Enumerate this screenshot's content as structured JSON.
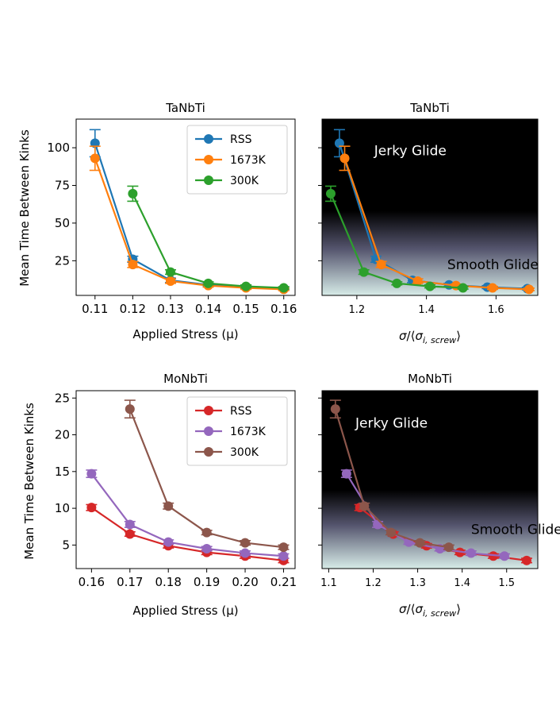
{
  "colors": {
    "blue": "#1f77b4",
    "orange": "#ff7f0e",
    "green": "#2ca02c",
    "red": "#d62728",
    "purple": "#9467bd",
    "brown": "#8c564b"
  },
  "shared_ylabel": "Mean Time Between Kinks",
  "chart_data": [
    {
      "id": "tl",
      "type": "line",
      "title": "TaNbTi",
      "xlabel": "Applied Stress (μ)",
      "xlim": [
        0.105,
        0.163
      ],
      "ylim": [
        2,
        119
      ],
      "xticks": [
        0.11,
        0.12,
        0.13,
        0.14,
        0.15,
        0.16
      ],
      "xtick_labels": [
        "0.11",
        "0.12",
        "0.13",
        "0.14",
        "0.15",
        "0.16"
      ],
      "yticks": [
        25,
        50,
        75,
        100
      ],
      "ytick_labels": [
        "25",
        "50",
        "75",
        "100"
      ],
      "legend": {
        "position": "top-right",
        "entries": [
          "RSS",
          "1673K",
          "300K"
        ]
      },
      "series": [
        {
          "name": "RSS",
          "color": "blue",
          "x": [
            0.11,
            0.12,
            0.13,
            0.14,
            0.15,
            0.16
          ],
          "y": [
            103,
            26,
            12,
            9,
            7.5,
            6.5
          ],
          "err": [
            9,
            2,
            1.5,
            1,
            1,
            0.8
          ]
        },
        {
          "name": "1673K",
          "color": "orange",
          "x": [
            0.11,
            0.12,
            0.13,
            0.14,
            0.15,
            0.16
          ],
          "y": [
            93,
            22.5,
            11.5,
            8.5,
            7,
            6
          ],
          "err": [
            8,
            2,
            1.5,
            1,
            1,
            0.8
          ]
        },
        {
          "name": "300K",
          "color": "green",
          "x": [
            0.12,
            0.13,
            0.14,
            0.15,
            0.16
          ],
          "y": [
            69.5,
            17.5,
            10,
            8,
            7
          ],
          "err": [
            5,
            1.5,
            1,
            1,
            0.8
          ]
        }
      ]
    },
    {
      "id": "tr",
      "type": "line",
      "title": "TaNbTi",
      "xlabel": "σ/⟨σ_i,screw⟩",
      "xlim": [
        1.1,
        1.72
      ],
      "ylim": [
        2,
        119
      ],
      "xticks": [
        1.2,
        1.4,
        1.6
      ],
      "xtick_labels": [
        "1.2",
        "1.4",
        "1.6"
      ],
      "yticks": [
        25,
        50,
        75,
        100
      ],
      "background": {
        "top": "#000000",
        "bottom": "#d7ece8",
        "fade_start": 58,
        "fade_end": 2
      },
      "annotations": [
        {
          "text": "Jerky Glide",
          "x": 1.25,
          "y": 95,
          "color": "#ffffff"
        },
        {
          "text": "Smooth Glide",
          "x": 1.46,
          "y": 19.5,
          "color": "#000000"
        }
      ],
      "series": [
        {
          "name": "RSS",
          "color": "blue",
          "x": [
            1.15,
            1.255,
            1.36,
            1.465,
            1.575,
            1.69
          ],
          "y": [
            103,
            26,
            12,
            9,
            7.5,
            6.5
          ],
          "err": [
            9,
            2,
            1.5,
            1,
            1,
            0.8
          ]
        },
        {
          "name": "1673K",
          "color": "orange",
          "x": [
            1.165,
            1.27,
            1.375,
            1.485,
            1.59,
            1.695
          ],
          "y": [
            93,
            22.5,
            11.5,
            8.5,
            7,
            6
          ],
          "err": [
            8,
            2,
            1.5,
            1,
            1,
            0.8
          ]
        },
        {
          "name": "300K",
          "color": "green",
          "x": [
            1.125,
            1.22,
            1.315,
            1.41,
            1.505
          ],
          "y": [
            69.5,
            17.5,
            10,
            8,
            7
          ],
          "err": [
            5,
            1.5,
            1,
            1,
            0.8
          ]
        }
      ]
    },
    {
      "id": "bl",
      "type": "line",
      "title": "MoNbTi",
      "xlabel": "Applied Stress (μ)",
      "xlim": [
        0.156,
        0.213
      ],
      "ylim": [
        1.8,
        26
      ],
      "xticks": [
        0.16,
        0.17,
        0.18,
        0.19,
        0.2,
        0.21
      ],
      "xtick_labels": [
        "0.16",
        "0.17",
        "0.18",
        "0.19",
        "0.20",
        "0.21"
      ],
      "yticks": [
        5,
        10,
        15,
        20,
        25
      ],
      "ytick_labels": [
        "5",
        "10",
        "15",
        "20",
        "25"
      ],
      "legend": {
        "position": "top-right",
        "entries": [
          "RSS",
          "1673K",
          "300K"
        ]
      },
      "series": [
        {
          "name": "RSS",
          "color": "red",
          "x": [
            0.16,
            0.17,
            0.18,
            0.19,
            0.2,
            0.21
          ],
          "y": [
            10.1,
            6.5,
            4.9,
            4,
            3.5,
            2.9
          ],
          "err": [
            0.4,
            0.3,
            0.3,
            0.3,
            0.3,
            0.3
          ]
        },
        {
          "name": "1673K",
          "color": "purple",
          "x": [
            0.16,
            0.17,
            0.18,
            0.19,
            0.2,
            0.21
          ],
          "y": [
            14.7,
            7.8,
            5.4,
            4.5,
            3.9,
            3.5
          ],
          "err": [
            0.5,
            0.4,
            0.3,
            0.3,
            0.3,
            0.3
          ]
        },
        {
          "name": "300K",
          "color": "brown",
          "x": [
            0.17,
            0.18,
            0.19,
            0.2,
            0.21
          ],
          "y": [
            23.5,
            10.3,
            6.7,
            5.3,
            4.7
          ],
          "err": [
            1.2,
            0.4,
            0.3,
            0.3,
            0.3
          ]
        }
      ]
    },
    {
      "id": "br",
      "type": "line",
      "title": "MoNbTi",
      "xlabel": "σ/⟨σ_i,screw⟩",
      "xlim": [
        1.085,
        1.57
      ],
      "ylim": [
        1.8,
        26
      ],
      "xticks": [
        1.1,
        1.2,
        1.3,
        1.4,
        1.5
      ],
      "xtick_labels": [
        "1.1",
        "1.2",
        "1.3",
        "1.4",
        "1.5"
      ],
      "yticks": [
        5,
        10,
        15,
        20,
        25
      ],
      "background": {
        "top": "#000000",
        "bottom": "#d7ece8",
        "fade_start": 12.5,
        "fade_end": 1.8
      },
      "annotations": [
        {
          "text": "Jerky Glide",
          "x": 1.16,
          "y": 21,
          "color": "#ffffff"
        },
        {
          "text": "Smooth Glide",
          "x": 1.42,
          "y": 6.5,
          "color": "#000000"
        }
      ],
      "series": [
        {
          "name": "RSS",
          "color": "red",
          "x": [
            1.17,
            1.245,
            1.32,
            1.395,
            1.47,
            1.545
          ],
          "y": [
            10.1,
            6.5,
            4.9,
            4,
            3.5,
            2.9
          ],
          "err": [
            0.4,
            0.3,
            0.3,
            0.3,
            0.3,
            0.3
          ]
        },
        {
          "name": "1673K",
          "color": "purple",
          "x": [
            1.14,
            1.21,
            1.28,
            1.35,
            1.42,
            1.495
          ],
          "y": [
            14.7,
            7.8,
            5.4,
            4.5,
            3.9,
            3.5
          ],
          "err": [
            0.5,
            0.4,
            0.3,
            0.3,
            0.3,
            0.3
          ]
        },
        {
          "name": "300K",
          "color": "brown",
          "x": [
            1.115,
            1.18,
            1.24,
            1.305,
            1.37
          ],
          "y": [
            23.5,
            10.3,
            6.7,
            5.3,
            4.7
          ],
          "err": [
            1.2,
            0.4,
            0.3,
            0.3,
            0.3
          ]
        }
      ]
    }
  ]
}
